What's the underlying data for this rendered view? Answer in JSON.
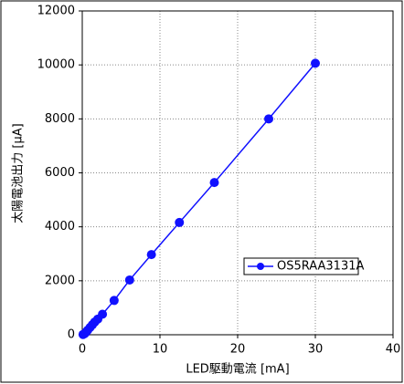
{
  "chart_data": {
    "type": "line",
    "x_label": "LED駆動電流 [mA]",
    "y_label": "太陽電池出力 [μA]",
    "series": [
      {
        "name": "OS5RAA3131A",
        "color": "#1010ff",
        "x": [
          0.1,
          0.3,
          0.5,
          0.7,
          1.0,
          1.3,
          1.6,
          2.0,
          2.6,
          4.1,
          6.1,
          8.9,
          12.5,
          17.0,
          24.0,
          30.0
        ],
        "values": [
          10,
          40,
          100,
          170,
          270,
          370,
          470,
          580,
          760,
          1270,
          2030,
          2970,
          4160,
          5640,
          8000,
          10060
        ]
      }
    ],
    "xlim": [
      0,
      40
    ],
    "xticks": [
      0,
      10,
      20,
      30,
      40
    ],
    "ylim": [
      0,
      12000
    ],
    "yticks": [
      0,
      2000,
      4000,
      6000,
      8000,
      10000,
      12000
    ],
    "grid": true,
    "legend": "lower-right"
  }
}
